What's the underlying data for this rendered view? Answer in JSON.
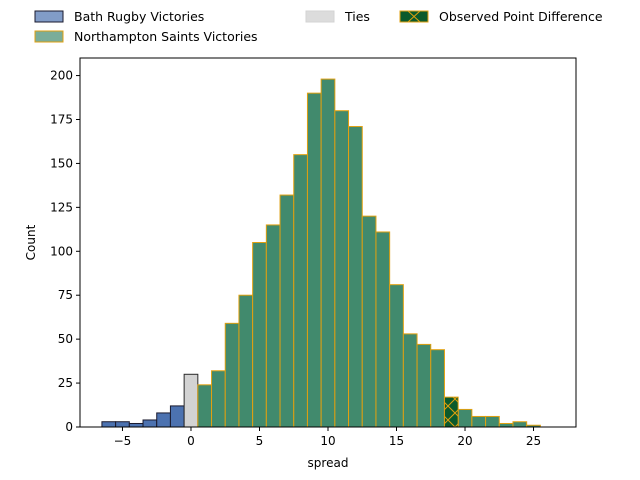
{
  "chart_data": {
    "type": "bar",
    "xlabel": "spread",
    "ylabel": "Count",
    "xlim": [
      -8.1,
      28.1
    ],
    "ylim": [
      0,
      210
    ],
    "x_ticks": [
      -5,
      0,
      5,
      10,
      15,
      20,
      25
    ],
    "y_ticks": [
      0,
      25,
      50,
      75,
      100,
      125,
      150,
      175,
      200
    ],
    "bin_width": 1,
    "legend": {
      "placement": "top",
      "entries": [
        {
          "key": "bath",
          "label": "Bath Rugby Victories"
        },
        {
          "key": "northampton",
          "label": "Northampton Saints Victories"
        },
        {
          "key": "ties",
          "label": "Ties"
        },
        {
          "key": "observed",
          "label": "Observed Point Difference"
        }
      ]
    },
    "colors": {
      "bath": "#4c72b0",
      "bath_edge": "#1a1a2e",
      "northampton": "#418a6d",
      "northampton_edge": "#e0a010",
      "ties": "#d3d3d3",
      "ties_edge": "#2a2a2a",
      "observed": "#0b5a2c",
      "observed_edge": "#e0a010"
    },
    "series": [
      {
        "key": "bath",
        "x": [
          -6,
          -5,
          -4,
          -3,
          -2,
          -1
        ],
        "values": [
          3,
          3,
          2,
          4,
          8,
          12
        ]
      },
      {
        "key": "ties",
        "x": [
          0
        ],
        "values": [
          30
        ]
      },
      {
        "key": "northampton",
        "x": [
          1,
          2,
          3,
          4,
          5,
          6,
          7,
          8,
          9,
          10,
          11,
          12,
          13,
          14,
          15,
          16,
          17,
          18,
          20,
          21,
          22,
          23,
          24,
          25
        ],
        "values": [
          24,
          32,
          59,
          75,
          105,
          115,
          132,
          155,
          190,
          198,
          180,
          171,
          120,
          111,
          81,
          53,
          47,
          44,
          10,
          6,
          6,
          2,
          3,
          1
        ]
      },
      {
        "key": "observed",
        "x": [
          19
        ],
        "values": [
          17
        ]
      }
    ]
  }
}
